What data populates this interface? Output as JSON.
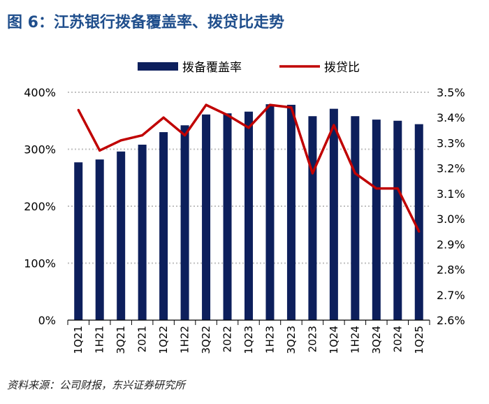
{
  "title": "图 6：江苏银行拨备覆盖率、拨贷比走势",
  "source": "资料来源：公司财报，东兴证券研究所",
  "colors": {
    "bar": "#0d1f5c",
    "line": "#c00000",
    "grid": "#bfbfbf",
    "axis": "#000000"
  },
  "chart_data": {
    "type": "bar+line",
    "categories": [
      "1Q21",
      "1H21",
      "3Q21",
      "2021",
      "1Q22",
      "1H22",
      "3Q22",
      "2022",
      "1Q23",
      "1H23",
      "3Q23",
      "2023",
      "1Q24",
      "1H24",
      "3Q24",
      "2024",
      "1Q25"
    ],
    "series": [
      {
        "name": "拨备覆盖率",
        "type": "bar",
        "axis": "left",
        "values": [
          277,
          282,
          296,
          308,
          330,
          342,
          361,
          363,
          366,
          379,
          378,
          358,
          371,
          358,
          352,
          350,
          344
        ]
      },
      {
        "name": "拨贷比",
        "type": "line",
        "axis": "right",
        "values": [
          3.43,
          3.27,
          3.31,
          3.33,
          3.4,
          3.33,
          3.45,
          3.41,
          3.36,
          3.45,
          3.44,
          3.18,
          3.37,
          3.18,
          3.12,
          3.12,
          2.95
        ]
      }
    ],
    "y_left": {
      "min": 0,
      "max": 400,
      "ticks": [
        0,
        100,
        200,
        300,
        400
      ],
      "tick_labels": [
        "0%",
        "100%",
        "200%",
        "300%",
        "400%"
      ]
    },
    "y_right": {
      "min": 2.6,
      "max": 3.5,
      "ticks": [
        2.6,
        2.7,
        2.8,
        2.9,
        3.0,
        3.1,
        3.2,
        3.3,
        3.4,
        3.5
      ],
      "tick_labels": [
        "2.6%",
        "2.7%",
        "2.8%",
        "2.9%",
        "3.0%",
        "3.1%",
        "3.2%",
        "3.3%",
        "3.4%",
        "3.5%"
      ]
    },
    "legend": {
      "position": "top-center",
      "labels": [
        "拨备覆盖率",
        "拨贷比"
      ]
    },
    "grid": "horizontal dotted"
  }
}
